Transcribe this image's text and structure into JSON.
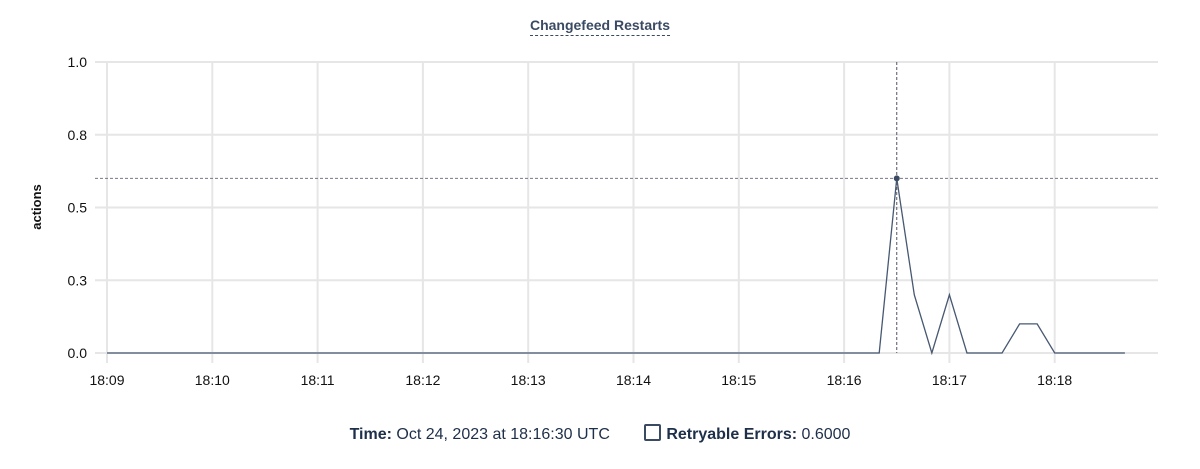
{
  "chart_data": {
    "type": "line",
    "title": "Changefeed Restarts",
    "ylabel": "actions",
    "xlabel": "",
    "ylim": [
      0,
      1.0
    ],
    "y_ticks": [
      {
        "value": 0,
        "label": "0.0"
      },
      {
        "value": 0.25,
        "label": "0.3"
      },
      {
        "value": 0.5,
        "label": "0.5"
      },
      {
        "value": 0.75,
        "label": "0.8"
      },
      {
        "value": 1.0,
        "label": "1.0"
      }
    ],
    "x_ticks": [
      "18:09",
      "18:10",
      "18:11",
      "18:12",
      "18:13",
      "18:14",
      "18:15",
      "18:16",
      "18:17",
      "18:18"
    ],
    "grid": true,
    "line_color": "#475872",
    "series": [
      {
        "name": "Retryable Errors",
        "points": [
          [
            "18:09:00",
            0
          ],
          [
            "18:09:10",
            0
          ],
          [
            "18:09:20",
            0
          ],
          [
            "18:09:30",
            0
          ],
          [
            "18:09:40",
            0
          ],
          [
            "18:09:50",
            0
          ],
          [
            "18:10:00",
            0
          ],
          [
            "18:10:10",
            0
          ],
          [
            "18:10:20",
            0
          ],
          [
            "18:10:30",
            0
          ],
          [
            "18:10:40",
            0
          ],
          [
            "18:10:50",
            0
          ],
          [
            "18:11:00",
            0
          ],
          [
            "18:11:10",
            0
          ],
          [
            "18:11:20",
            0
          ],
          [
            "18:11:30",
            0
          ],
          [
            "18:11:40",
            0
          ],
          [
            "18:11:50",
            0
          ],
          [
            "18:12:00",
            0
          ],
          [
            "18:12:10",
            0
          ],
          [
            "18:12:20",
            0
          ],
          [
            "18:12:30",
            0
          ],
          [
            "18:12:40",
            0
          ],
          [
            "18:12:50",
            0
          ],
          [
            "18:13:00",
            0
          ],
          [
            "18:13:10",
            0
          ],
          [
            "18:13:20",
            0
          ],
          [
            "18:13:30",
            0
          ],
          [
            "18:13:40",
            0
          ],
          [
            "18:13:50",
            0
          ],
          [
            "18:14:00",
            0
          ],
          [
            "18:14:10",
            0
          ],
          [
            "18:14:20",
            0
          ],
          [
            "18:14:30",
            0
          ],
          [
            "18:14:40",
            0
          ],
          [
            "18:14:50",
            0
          ],
          [
            "18:15:00",
            0
          ],
          [
            "18:15:10",
            0
          ],
          [
            "18:15:20",
            0
          ],
          [
            "18:15:30",
            0
          ],
          [
            "18:15:40",
            0
          ],
          [
            "18:15:50",
            0
          ],
          [
            "18:16:00",
            0
          ],
          [
            "18:16:10",
            0
          ],
          [
            "18:16:20",
            0
          ],
          [
            "18:16:30",
            0.6
          ],
          [
            "18:16:40",
            0.2
          ],
          [
            "18:16:50",
            0
          ],
          [
            "18:17:00",
            0.2
          ],
          [
            "18:17:10",
            0
          ],
          [
            "18:17:20",
            0
          ],
          [
            "18:17:30",
            0
          ],
          [
            "18:17:40",
            0.1
          ],
          [
            "18:17:50",
            0.1
          ],
          [
            "18:18:00",
            0
          ],
          [
            "18:18:10",
            0
          ],
          [
            "18:18:20",
            0
          ],
          [
            "18:18:30",
            0
          ],
          [
            "18:18:40",
            0
          ]
        ]
      }
    ],
    "hover": {
      "time": "18:16:30",
      "value": 0.6
    }
  },
  "legend": {
    "time_label": "Time:",
    "time_value": "Oct 24, 2023 at 18:16:30 UTC",
    "series_label": "Retryable Errors:",
    "series_value": "0.6000"
  }
}
